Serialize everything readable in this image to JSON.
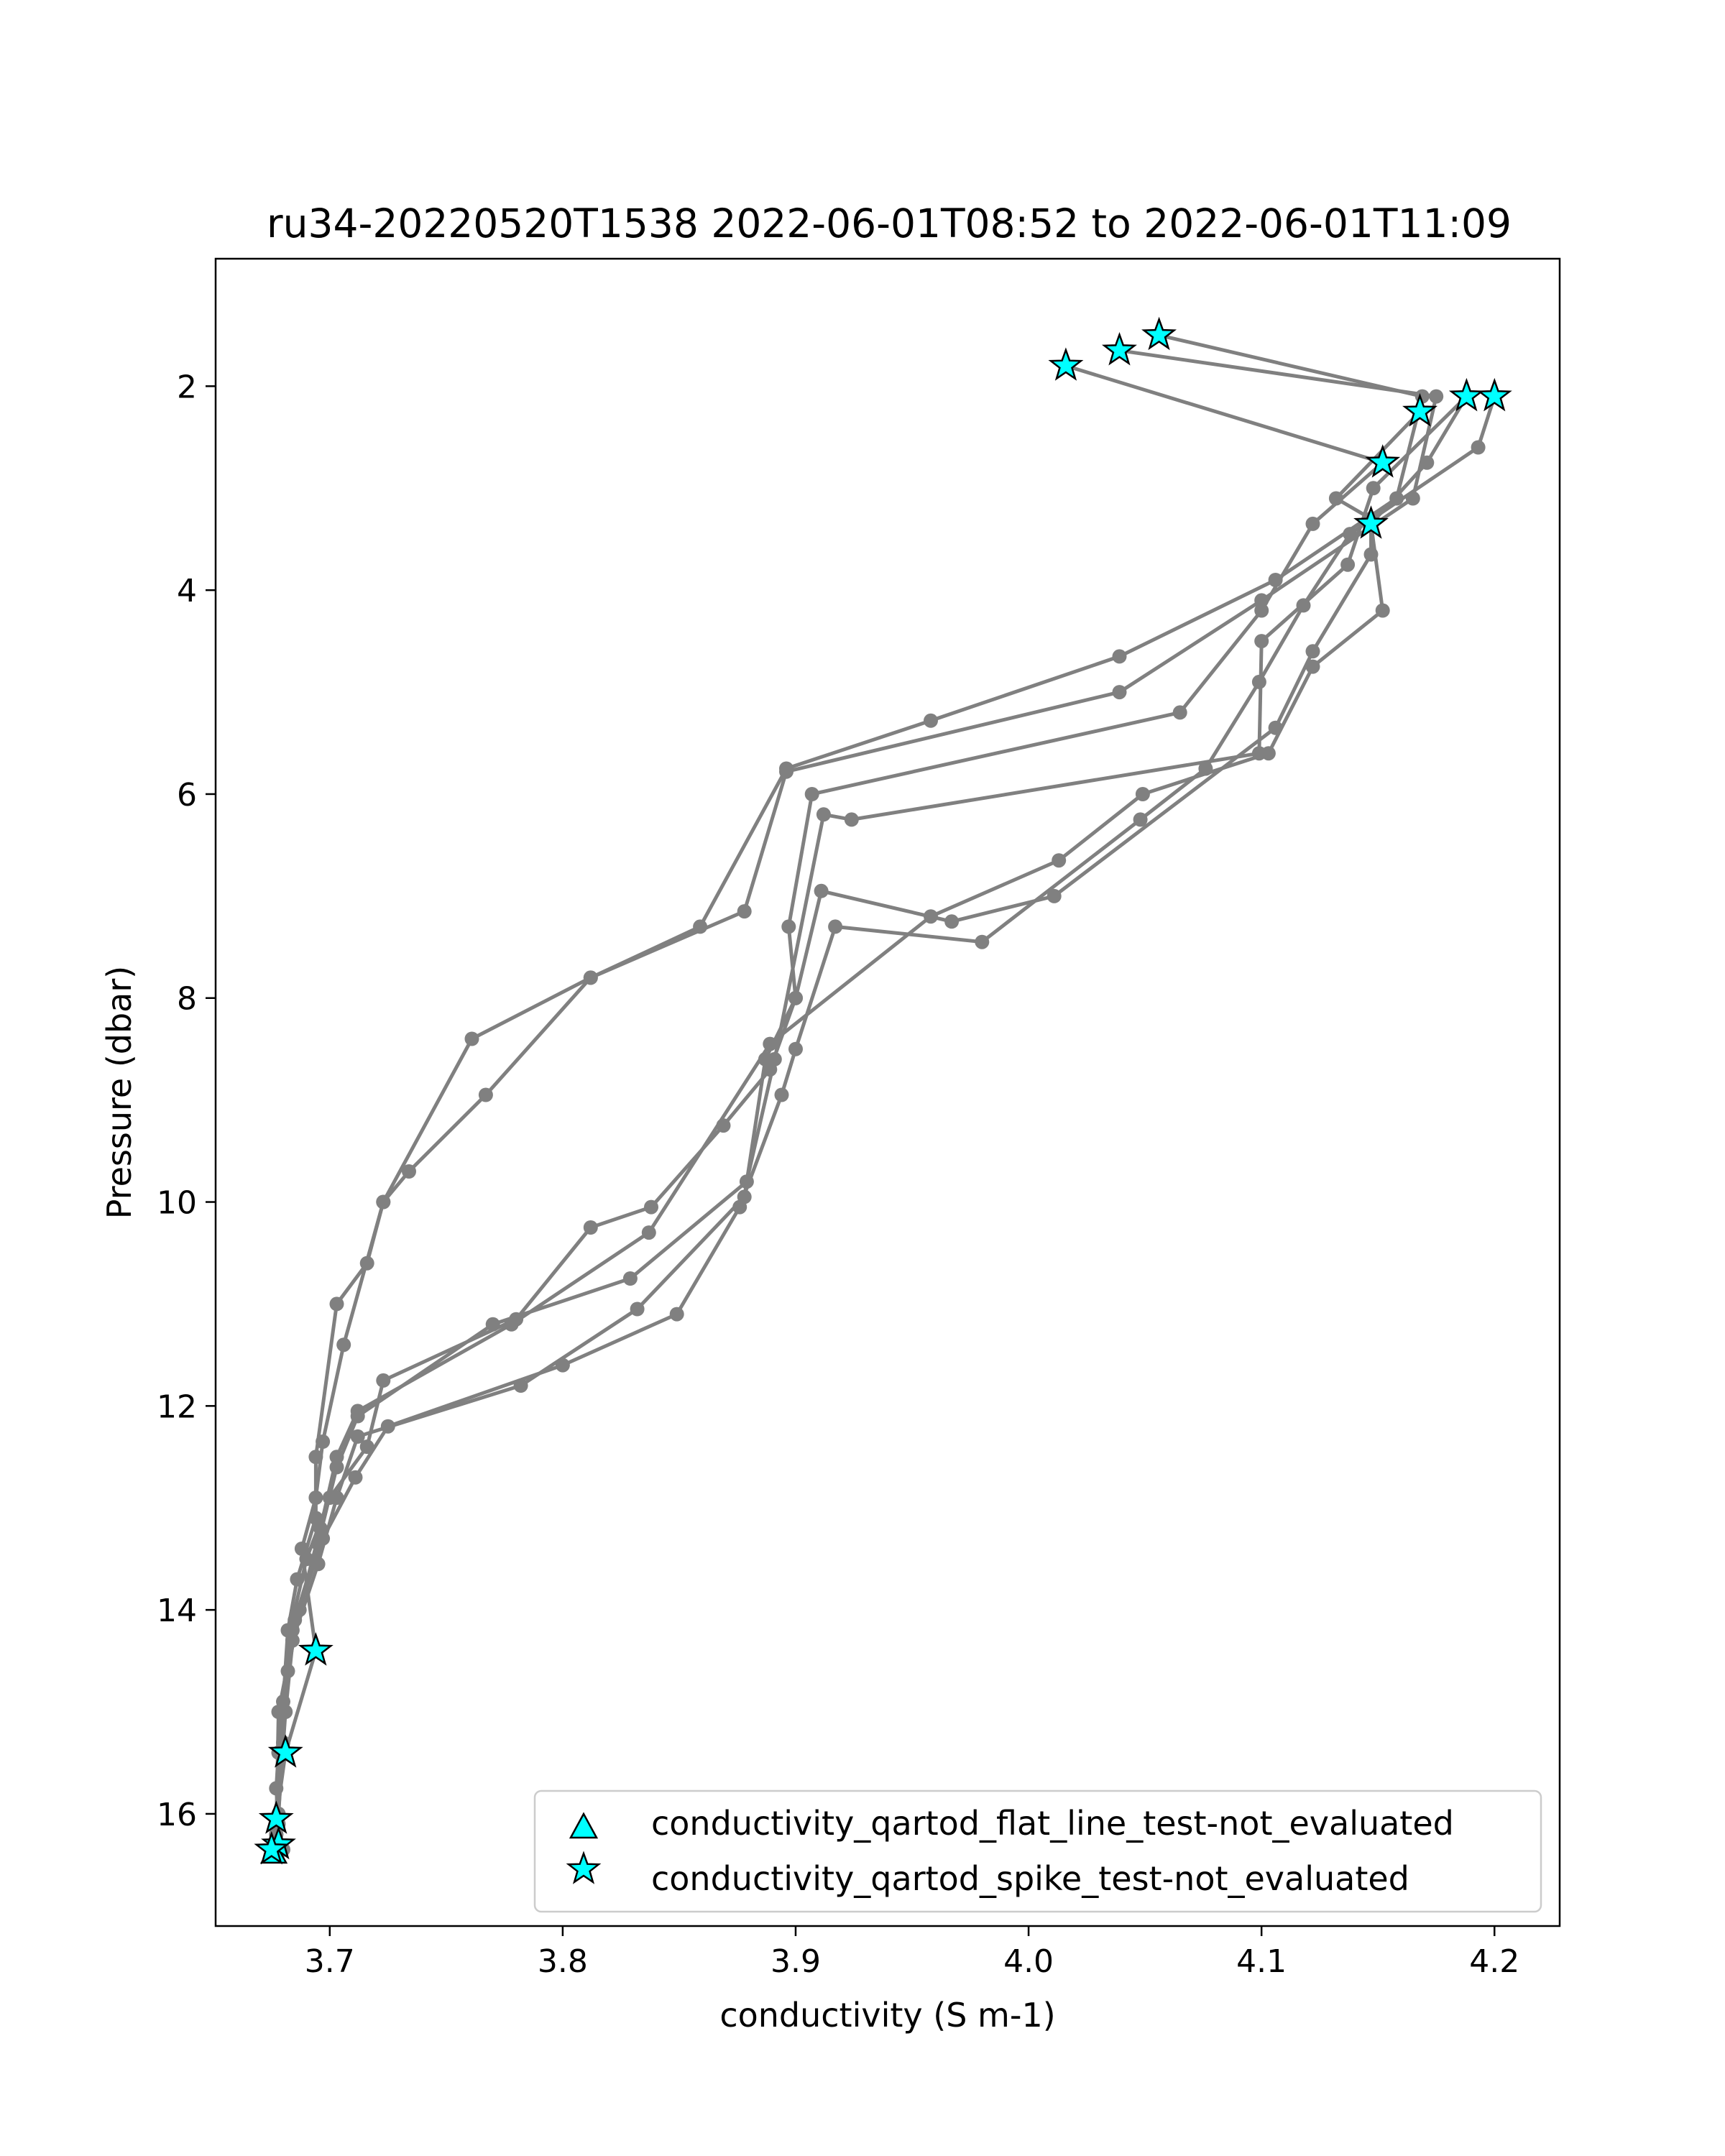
{
  "chart_data": {
    "type": "scatter",
    "title": "ru34-20220520T1538 2022-06-01T08:52 to 2022-06-01T11:09",
    "xlabel": "conductivity (S m-1)",
    "ylabel": "Pressure (dbar)",
    "xlim": [
      3.651,
      4.228
    ],
    "ylim": [
      17.1,
      0.75
    ],
    "y_inverted": true,
    "grid": false,
    "x_ticks": [
      3.7,
      3.8,
      3.9,
      4.0,
      4.1,
      4.2
    ],
    "x_tick_labels": [
      "3.7",
      "3.8",
      "3.9",
      "4.0",
      "4.1",
      "4.2"
    ],
    "y_ticks": [
      2,
      4,
      6,
      8,
      10,
      12,
      14,
      16
    ],
    "y_tick_labels": [
      "2",
      "4",
      "6",
      "8",
      "10",
      "12",
      "14",
      "16"
    ],
    "line_color": "#808080",
    "marker_color": "#00ffff",
    "legend": {
      "position": "lower right",
      "entries": [
        {
          "label": "conductivity_qartod_flat_line_test-not_evaluated",
          "marker": "triangle",
          "color": "#00ffff"
        },
        {
          "label": "conductivity_qartod_spike_test-not_evaluated",
          "marker": "star",
          "color": "#00ffff"
        }
      ]
    },
    "profiles": [
      [
        [
          4.056,
          1.5
        ],
        [
          4.169,
          2.1
        ],
        [
          4.158,
          3.1
        ],
        [
          4.106,
          3.9
        ],
        [
          4.039,
          4.65
        ],
        [
          3.958,
          5.28
        ],
        [
          3.896,
          5.75
        ],
        [
          3.859,
          7.3
        ],
        [
          3.812,
          7.8
        ],
        [
          3.767,
          8.95
        ],
        [
          3.734,
          9.7
        ],
        [
          3.723,
          10.0
        ],
        [
          3.716,
          10.6
        ],
        [
          3.703,
          11.0
        ],
        [
          3.694,
          12.5
        ],
        [
          3.694,
          13.1
        ],
        [
          3.686,
          13.7
        ],
        [
          3.682,
          14.2
        ],
        [
          3.68,
          14.9
        ],
        [
          3.678,
          15.4
        ],
        [
          3.677,
          15.75
        ],
        [
          3.678,
          16.1
        ],
        [
          3.68,
          16.35
        ]
      ],
      [
        [
          4.039,
          1.65
        ],
        [
          4.175,
          2.1
        ],
        [
          4.165,
          3.1
        ],
        [
          4.1,
          4.1
        ],
        [
          4.039,
          5.0
        ],
        [
          3.896,
          5.78
        ],
        [
          3.878,
          7.15
        ],
        [
          3.812,
          7.8
        ],
        [
          3.761,
          8.4
        ],
        [
          3.723,
          10.0
        ],
        [
          3.706,
          11.4
        ],
        [
          3.697,
          12.35
        ],
        [
          3.694,
          12.9
        ],
        [
          3.688,
          13.4
        ],
        [
          3.694,
          14.4
        ],
        [
          3.681,
          15.4
        ],
        [
          3.677,
          16.05
        ]
      ],
      [
        [
          4.016,
          1.8
        ],
        [
          4.152,
          2.75
        ],
        [
          4.122,
          3.35
        ],
        [
          4.1,
          4.2
        ],
        [
          4.065,
          5.2
        ],
        [
          3.907,
          6.0
        ],
        [
          3.897,
          7.3
        ],
        [
          3.9,
          8.0
        ],
        [
          3.889,
          8.7
        ],
        [
          3.869,
          9.25
        ],
        [
          3.838,
          10.05
        ],
        [
          3.812,
          10.25
        ],
        [
          3.78,
          11.15
        ],
        [
          3.723,
          11.75
        ],
        [
          3.716,
          12.4
        ],
        [
          3.7,
          12.9
        ],
        [
          3.69,
          13.5
        ],
        [
          3.683,
          14.2
        ],
        [
          3.68,
          15.0
        ],
        [
          3.676,
          16.3
        ]
      ],
      [
        [
          4.188,
          2.1
        ],
        [
          4.171,
          2.75
        ],
        [
          4.147,
          3.35
        ],
        [
          4.152,
          4.2
        ],
        [
          4.122,
          4.75
        ],
        [
          4.103,
          5.6
        ],
        [
          4.049,
          6.0
        ],
        [
          4.013,
          6.65
        ],
        [
          3.958,
          7.2
        ],
        [
          3.889,
          8.45
        ],
        [
          3.837,
          10.3
        ],
        [
          3.778,
          11.2
        ],
        [
          3.712,
          12.05
        ],
        [
          3.703,
          12.5
        ],
        [
          3.696,
          13.2
        ],
        [
          3.687,
          14.0
        ],
        [
          3.682,
          14.6
        ],
        [
          3.68,
          15.3
        ],
        [
          3.678,
          16.0
        ]
      ],
      [
        [
          4.2,
          2.1
        ],
        [
          4.193,
          2.6
        ],
        [
          4.138,
          3.45
        ],
        [
          4.118,
          4.15
        ],
        [
          4.099,
          4.9
        ],
        [
          4.076,
          5.75
        ],
        [
          4.048,
          6.25
        ],
        [
          3.98,
          7.45
        ],
        [
          3.917,
          7.3
        ],
        [
          3.9,
          8.5
        ],
        [
          3.894,
          8.95
        ],
        [
          3.876,
          10.05
        ],
        [
          3.849,
          11.1
        ],
        [
          3.8,
          11.6
        ],
        [
          3.725,
          12.2
        ],
        [
          3.711,
          12.7
        ],
        [
          3.697,
          13.3
        ],
        [
          3.684,
          14.2
        ],
        [
          3.68,
          15.0
        ],
        [
          3.677,
          16.2
        ]
      ],
      [
        [
          4.168,
          2.25
        ],
        [
          4.132,
          3.1
        ],
        [
          4.147,
          3.3
        ],
        [
          4.147,
          3.65
        ],
        [
          4.122,
          4.6
        ],
        [
          4.106,
          5.35
        ],
        [
          4.011,
          7.0
        ],
        [
          3.967,
          7.25
        ],
        [
          3.911,
          6.95
        ],
        [
          3.9,
          8.0
        ],
        [
          3.887,
          8.6
        ],
        [
          3.878,
          9.95
        ],
        [
          3.832,
          11.05
        ],
        [
          3.782,
          11.8
        ],
        [
          3.712,
          12.3
        ],
        [
          3.703,
          12.9
        ],
        [
          3.695,
          13.55
        ],
        [
          3.684,
          14.3
        ],
        [
          3.678,
          15.0
        ],
        [
          3.677,
          16.2
        ]
      ],
      [
        [
          4.188,
          2.1
        ],
        [
          4.148,
          3.0
        ],
        [
          4.137,
          3.75
        ],
        [
          4.1,
          4.5
        ],
        [
          4.099,
          5.6
        ],
        [
          3.924,
          6.25
        ],
        [
          3.912,
          6.2
        ],
        [
          3.891,
          8.6
        ],
        [
          3.879,
          9.8
        ],
        [
          3.829,
          10.75
        ],
        [
          3.77,
          11.2
        ],
        [
          3.712,
          12.1
        ],
        [
          3.703,
          12.6
        ],
        [
          3.695,
          13.35
        ],
        [
          3.685,
          14.1
        ],
        [
          3.681,
          15.0
        ],
        [
          3.677,
          16.3
        ]
      ]
    ],
    "flagged_spike_points": [
      [
        4.056,
        1.5
      ],
      [
        4.039,
        1.65
      ],
      [
        4.016,
        1.8
      ],
      [
        4.188,
        2.1
      ],
      [
        4.2,
        2.1
      ],
      [
        4.168,
        2.25
      ],
      [
        4.152,
        2.75
      ],
      [
        4.147,
        3.35
      ],
      [
        3.694,
        14.4
      ],
      [
        3.681,
        15.4
      ],
      [
        3.677,
        16.05
      ],
      [
        3.678,
        16.3
      ],
      [
        3.675,
        16.35
      ]
    ],
    "flagged_flat_line_points": [
      [
        3.676,
        16.38
      ]
    ]
  }
}
